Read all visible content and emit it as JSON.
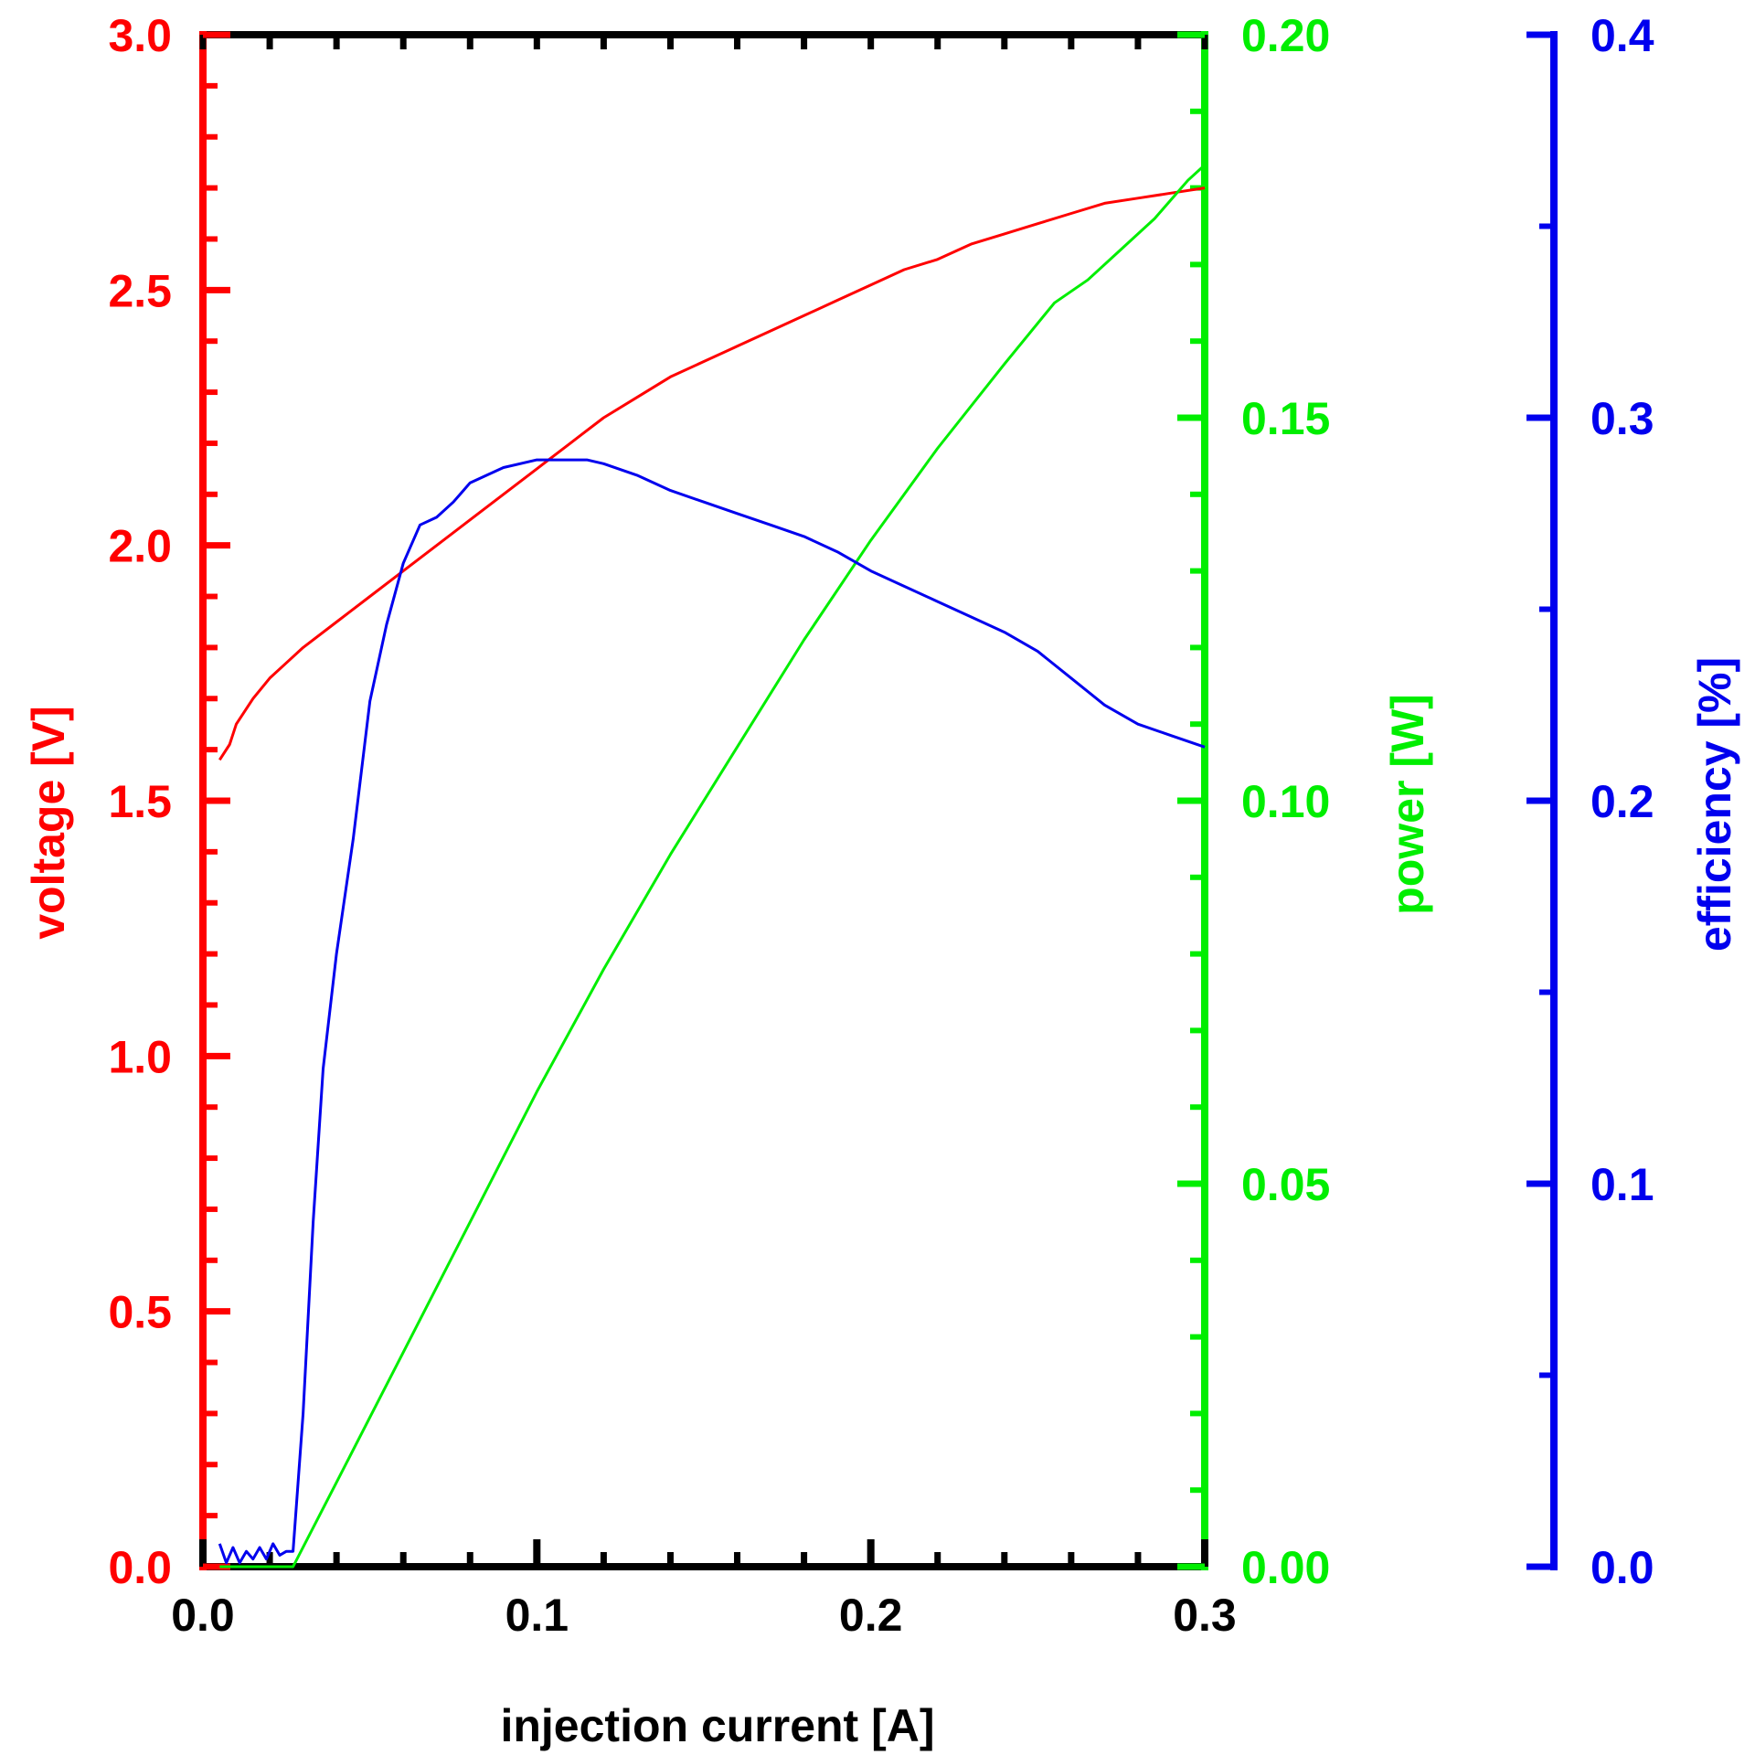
{
  "chart_data": {
    "type": "line",
    "xlabel": "injection current [A]",
    "xlim": [
      0,
      0.3
    ],
    "xticks": [
      "0.0",
      "0.1",
      "0.2",
      "0.3"
    ],
    "axes": {
      "voltage": {
        "label": "voltage [V]",
        "color": "#ff0000",
        "ylim": [
          0,
          3
        ],
        "side": "left",
        "ticks": [
          "0.0",
          "0.5",
          "1.0",
          "1.5",
          "2.0",
          "2.5",
          "3.0"
        ]
      },
      "power": {
        "label": "power [W]",
        "color": "#00ee00",
        "ylim": [
          0,
          0.2
        ],
        "side": "right",
        "ticks": [
          "0.00",
          "0.05",
          "0.10",
          "0.15",
          "0.20"
        ]
      },
      "efficiency": {
        "label": "efficiency [%]",
        "color": "#0000ee",
        "ylim": [
          0,
          0.4
        ],
        "side": "right-outer",
        "ticks": [
          "0.0",
          "0.1",
          "0.2",
          "0.3",
          "0.4"
        ]
      }
    },
    "series": [
      {
        "axis": "voltage",
        "color": "#ff0000",
        "x": [
          0.005,
          0.008,
          0.01,
          0.015,
          0.02,
          0.025,
          0.03,
          0.04,
          0.05,
          0.06,
          0.07,
          0.08,
          0.09,
          0.1,
          0.11,
          0.12,
          0.13,
          0.14,
          0.15,
          0.16,
          0.17,
          0.18,
          0.19,
          0.2,
          0.21,
          0.22,
          0.23,
          0.24,
          0.25,
          0.26,
          0.27,
          0.28,
          0.29,
          0.3
        ],
        "y": [
          1.58,
          1.61,
          1.65,
          1.7,
          1.74,
          1.77,
          1.8,
          1.85,
          1.9,
          1.95,
          2.0,
          2.05,
          2.1,
          2.15,
          2.2,
          2.25,
          2.29,
          2.33,
          2.36,
          2.39,
          2.42,
          2.45,
          2.48,
          2.51,
          2.54,
          2.56,
          2.59,
          2.61,
          2.63,
          2.65,
          2.67,
          2.68,
          2.69,
          2.7
        ]
      },
      {
        "axis": "power",
        "color": "#00ee00",
        "x": [
          0.005,
          0.027,
          0.04,
          0.06,
          0.08,
          0.1,
          0.12,
          0.14,
          0.16,
          0.18,
          0.2,
          0.22,
          0.24,
          0.255,
          0.265,
          0.275,
          0.285,
          0.295,
          0.3
        ],
        "y": [
          0.0,
          0.0,
          0.011,
          0.028,
          0.045,
          0.062,
          0.078,
          0.093,
          0.107,
          0.121,
          0.134,
          0.146,
          0.157,
          0.165,
          0.168,
          0.172,
          0.176,
          0.181,
          0.183
        ]
      },
      {
        "axis": "efficiency",
        "color": "#0000ee",
        "x": [
          0.005,
          0.007,
          0.009,
          0.011,
          0.013,
          0.015,
          0.017,
          0.019,
          0.021,
          0.023,
          0.025,
          0.027,
          0.03,
          0.033,
          0.036,
          0.04,
          0.045,
          0.05,
          0.055,
          0.06,
          0.065,
          0.07,
          0.075,
          0.08,
          0.085,
          0.09,
          0.1,
          0.11,
          0.115,
          0.12,
          0.13,
          0.14,
          0.15,
          0.16,
          0.17,
          0.18,
          0.19,
          0.2,
          0.21,
          0.22,
          0.23,
          0.24,
          0.25,
          0.26,
          0.27,
          0.28,
          0.29,
          0.3
        ],
        "y": [
          0.006,
          0.001,
          0.005,
          0.001,
          0.004,
          0.002,
          0.005,
          0.002,
          0.006,
          0.003,
          0.004,
          0.004,
          0.04,
          0.09,
          0.13,
          0.16,
          0.19,
          0.226,
          0.246,
          0.262,
          0.272,
          0.274,
          0.278,
          0.283,
          0.285,
          0.287,
          0.289,
          0.289,
          0.289,
          0.288,
          0.285,
          0.281,
          0.278,
          0.275,
          0.272,
          0.269,
          0.265,
          0.26,
          0.256,
          0.252,
          0.248,
          0.244,
          0.239,
          0.232,
          0.225,
          0.22,
          0.217,
          0.214
        ]
      }
    ]
  }
}
